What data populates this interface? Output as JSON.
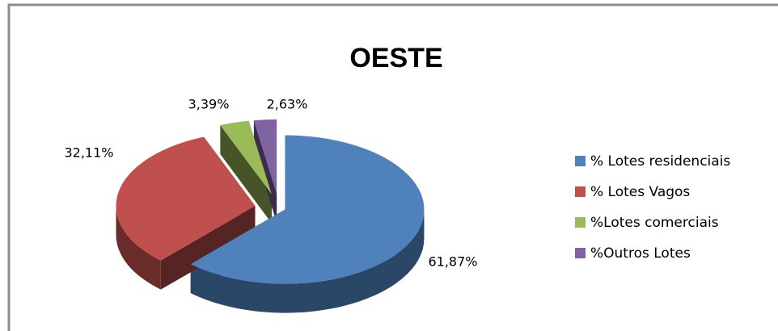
{
  "chart_data": {
    "type": "pie",
    "title": "OESTE",
    "categories": [
      "% Lotes residenciais",
      "% Lotes Vagos",
      "%Lotes comerciais",
      "%Outros Lotes"
    ],
    "values": [
      61.87,
      32.11,
      3.39,
      2.63
    ],
    "value_labels": [
      "61,87%",
      "32,11%",
      "3,39%",
      "2,63%"
    ],
    "colors": [
      "#4f81bd",
      "#c0504d",
      "#9bbb59",
      "#8064a2"
    ],
    "legend": "right"
  }
}
